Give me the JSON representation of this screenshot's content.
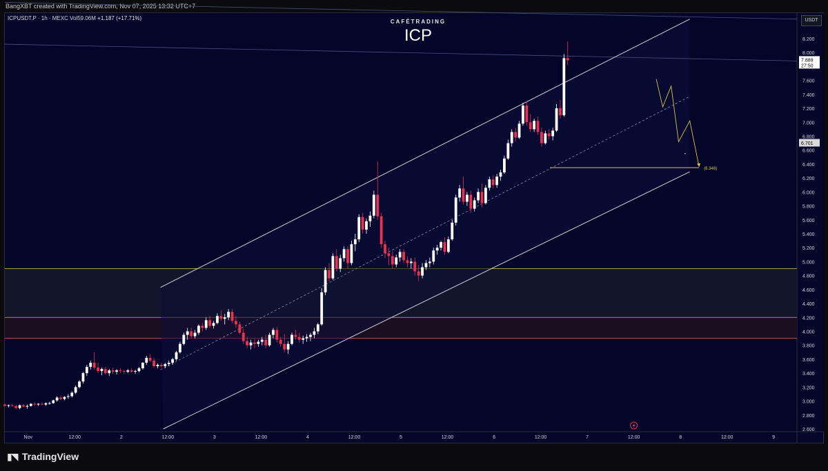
{
  "header": {
    "credit": "BangXBT created with TradingView.com, Nov 07, 2025 13:32 UTC+7"
  },
  "legend": {
    "symbol": "ICPUSDT.P · 1h · MEXC",
    "volume": "Vol59.06M",
    "change": "+1.187 (+17.71%)"
  },
  "brand": "CAFÉTRADING",
  "title": "ICP",
  "currency_button": "USDT",
  "footer_logo": "TradingView",
  "colors": {
    "background": "#050529",
    "bull_candle": "#ffffff",
    "bear_candle": "#e8324f",
    "channel": "#d0d0d8",
    "support_line": "#d4c84a",
    "zone_border": "#d4c84a",
    "zone_red_border": "#e0606a"
  },
  "chart_data": {
    "type": "candlestick",
    "title": "ICP",
    "interval": "1h",
    "y_axis": {
      "ticks": [
        "8.200",
        "8.000",
        "7.800",
        "7.600",
        "7.400",
        "7.200",
        "7.000",
        "6.800",
        "6.600",
        "6.400",
        "6.200",
        "6.000",
        "5.800",
        "5.600",
        "5.400",
        "5.200",
        "5.000",
        "4.800",
        "4.600",
        "4.400",
        "4.200",
        "4.000",
        "3.800",
        "3.600",
        "3.400",
        "3.200",
        "3.000",
        "2.800",
        "2.600"
      ],
      "range": [
        2.6,
        8.2
      ],
      "position": "right"
    },
    "x_axis": {
      "ticks": [
        {
          "label": "Nov",
          "day": 1.0
        },
        {
          "label": "12:00",
          "day": 1.5
        },
        {
          "label": "2",
          "day": 2.0
        },
        {
          "label": "12:00",
          "day": 2.5
        },
        {
          "label": "3",
          "day": 3.0
        },
        {
          "label": "12:00",
          "day": 3.5
        },
        {
          "label": "4",
          "day": 4.0
        },
        {
          "label": "12:00",
          "day": 4.5
        },
        {
          "label": "5",
          "day": 5.0
        },
        {
          "label": "12:00",
          "day": 5.5
        },
        {
          "label": "6",
          "day": 6.0
        },
        {
          "label": "12:00",
          "day": 6.5
        },
        {
          "label": "7",
          "day": 7.0
        },
        {
          "label": "12:00",
          "day": 7.5
        },
        {
          "label": "8",
          "day": 8.0
        },
        {
          "label": "12:00",
          "day": 8.5
        },
        {
          "label": "9",
          "day": 9.0
        }
      ],
      "range": [
        0.75,
        9.25
      ]
    },
    "price_labels": [
      {
        "text": "7.889",
        "sub": "27:50",
        "value": 7.889
      },
      {
        "text": "6.701",
        "value": 6.701
      }
    ],
    "support": {
      "label": "(6.348)",
      "value": 6.348,
      "from_day": 6.6,
      "to_day": 8.2
    },
    "zones": [
      {
        "name": "upper-zone",
        "from": 4.2,
        "to": 4.9
      },
      {
        "name": "lower-zone",
        "from": 3.9,
        "to": 4.2
      }
    ],
    "channel": {
      "upper": [
        [
          2.42,
          4.63
        ],
        [
          8.1,
          8.48
        ]
      ],
      "middle": [
        [
          2.42,
          3.45
        ],
        [
          8.1,
          7.37
        ]
      ],
      "lower": [
        [
          2.45,
          2.6
        ],
        [
          8.1,
          6.29
        ]
      ]
    },
    "horizontal_lines": [
      {
        "name": "resistance-line-1",
        "from": [
          0.75,
          8.12
        ],
        "to": [
          9.25,
          7.88
        ]
      },
      {
        "name": "resistance-line-2",
        "from": [
          0.75,
          8.72
        ],
        "to": [
          9.25,
          8.48
        ]
      }
    ],
    "projection": [
      [
        7.74,
        7.62
      ],
      [
        7.81,
        7.22
      ],
      [
        7.9,
        7.52
      ],
      [
        7.98,
        6.72
      ],
      [
        8.1,
        7.02
      ],
      [
        8.2,
        6.36
      ]
    ],
    "candles": [
      [
        0.75,
        2.95,
        2.96,
        2.92,
        2.93
      ],
      [
        0.79,
        2.93,
        2.95,
        2.91,
        2.94
      ],
      [
        0.83,
        2.94,
        2.96,
        2.92,
        2.93
      ],
      [
        0.87,
        2.93,
        2.94,
        2.88,
        2.9
      ],
      [
        0.91,
        2.9,
        2.95,
        2.88,
        2.94
      ],
      [
        0.95,
        2.94,
        2.96,
        2.91,
        2.92
      ],
      [
        0.99,
        2.92,
        2.95,
        2.89,
        2.93
      ],
      [
        1.03,
        2.93,
        2.97,
        2.92,
        2.96
      ],
      [
        1.07,
        2.96,
        2.98,
        2.93,
        2.95
      ],
      [
        1.11,
        2.95,
        2.97,
        2.93,
        2.96
      ],
      [
        1.15,
        2.96,
        2.98,
        2.94,
        2.95
      ],
      [
        1.19,
        2.95,
        2.98,
        2.93,
        2.97
      ],
      [
        1.23,
        2.97,
        2.99,
        2.95,
        2.97
      ],
      [
        1.27,
        2.97,
        3.02,
        2.96,
        3.01
      ],
      [
        1.31,
        3.01,
        3.07,
        2.99,
        3.05
      ],
      [
        1.35,
        3.05,
        3.08,
        3.01,
        3.03
      ],
      [
        1.39,
        3.03,
        3.07,
        3.01,
        3.06
      ],
      [
        1.43,
        3.06,
        3.1,
        3.03,
        3.07
      ],
      [
        1.47,
        3.07,
        3.14,
        3.05,
        3.12
      ],
      [
        1.51,
        3.12,
        3.22,
        3.1,
        3.2
      ],
      [
        1.55,
        3.2,
        3.3,
        3.18,
        3.28
      ],
      [
        1.59,
        3.28,
        3.42,
        3.25,
        3.4
      ],
      [
        1.63,
        3.4,
        3.52,
        3.36,
        3.49
      ],
      [
        1.67,
        3.49,
        3.58,
        3.45,
        3.55
      ],
      [
        1.71,
        3.55,
        3.7,
        3.45,
        3.48
      ],
      [
        1.75,
        3.48,
        3.55,
        3.4,
        3.43
      ],
      [
        1.79,
        3.43,
        3.48,
        3.37,
        3.46
      ],
      [
        1.83,
        3.46,
        3.49,
        3.38,
        3.4
      ],
      [
        1.87,
        3.4,
        3.46,
        3.36,
        3.44
      ],
      [
        1.91,
        3.44,
        3.48,
        3.39,
        3.42
      ],
      [
        1.95,
        3.42,
        3.46,
        3.38,
        3.44
      ],
      [
        1.99,
        3.44,
        3.47,
        3.4,
        3.43
      ],
      [
        2.03,
        3.43,
        3.45,
        3.39,
        3.42
      ],
      [
        2.07,
        3.42,
        3.46,
        3.4,
        3.44
      ],
      [
        2.11,
        3.44,
        3.47,
        3.41,
        3.42
      ],
      [
        2.15,
        3.42,
        3.45,
        3.39,
        3.43
      ],
      [
        2.19,
        3.43,
        3.49,
        3.41,
        3.47
      ],
      [
        2.23,
        3.47,
        3.56,
        3.45,
        3.55
      ],
      [
        2.27,
        3.55,
        3.65,
        3.52,
        3.62
      ],
      [
        2.31,
        3.62,
        3.68,
        3.56,
        3.58
      ],
      [
        2.35,
        3.58,
        3.62,
        3.48,
        3.5
      ],
      [
        2.39,
        3.5,
        3.54,
        3.47,
        3.52
      ],
      [
        2.43,
        3.52,
        3.55,
        3.48,
        3.5
      ],
      [
        2.47,
        3.5,
        3.55,
        3.47,
        3.53
      ],
      [
        2.51,
        3.53,
        3.58,
        3.5,
        3.55
      ],
      [
        2.55,
        3.55,
        3.62,
        3.52,
        3.6
      ],
      [
        2.59,
        3.6,
        3.72,
        3.58,
        3.7
      ],
      [
        2.63,
        3.7,
        3.85,
        3.68,
        3.82
      ],
      [
        2.67,
        3.82,
        3.98,
        3.8,
        3.95
      ],
      [
        2.71,
        3.95,
        4.05,
        3.88,
        4.0
      ],
      [
        2.75,
        4.0,
        4.05,
        3.9,
        3.93
      ],
      [
        2.79,
        3.93,
        4.02,
        3.9,
        3.98
      ],
      [
        2.83,
        3.98,
        4.1,
        3.95,
        4.08
      ],
      [
        2.87,
        4.08,
        4.12,
        4.0,
        4.05
      ],
      [
        2.91,
        4.05,
        4.2,
        4.02,
        4.16
      ],
      [
        2.95,
        4.16,
        4.22,
        4.05,
        4.08
      ],
      [
        2.99,
        4.08,
        4.15,
        4.04,
        4.12
      ],
      [
        3.03,
        4.12,
        4.26,
        4.1,
        4.22
      ],
      [
        3.07,
        4.22,
        4.3,
        4.15,
        4.18
      ],
      [
        3.11,
        4.18,
        4.25,
        4.1,
        4.2
      ],
      [
        3.15,
        4.2,
        4.32,
        4.16,
        4.28
      ],
      [
        3.19,
        4.28,
        4.32,
        4.12,
        4.15
      ],
      [
        3.23,
        4.15,
        4.22,
        4.05,
        4.1
      ],
      [
        3.27,
        4.1,
        4.14,
        3.96,
        3.98
      ],
      [
        3.31,
        3.98,
        4.04,
        3.82,
        3.86
      ],
      [
        3.35,
        3.86,
        3.92,
        3.76,
        3.8
      ],
      [
        3.39,
        3.8,
        3.88,
        3.74,
        3.84
      ],
      [
        3.43,
        3.84,
        3.9,
        3.76,
        3.82
      ],
      [
        3.47,
        3.82,
        3.88,
        3.78,
        3.85
      ],
      [
        3.51,
        3.85,
        3.92,
        3.8,
        3.88
      ],
      [
        3.55,
        3.88,
        3.95,
        3.76,
        3.8
      ],
      [
        3.59,
        3.8,
        3.98,
        3.78,
        3.95
      ],
      [
        3.63,
        3.95,
        4.05,
        3.9,
        4.02
      ],
      [
        3.67,
        4.02,
        4.06,
        3.84,
        3.88
      ],
      [
        3.71,
        3.88,
        3.92,
        3.78,
        3.82
      ],
      [
        3.75,
        3.82,
        3.96,
        3.7,
        3.74
      ],
      [
        3.79,
        3.74,
        3.86,
        3.68,
        3.82
      ],
      [
        3.83,
        3.82,
        3.98,
        3.8,
        3.95
      ],
      [
        3.87,
        3.95,
        4.02,
        3.88,
        3.92
      ],
      [
        3.91,
        3.92,
        3.98,
        3.84,
        3.88
      ],
      [
        3.95,
        3.88,
        3.94,
        3.82,
        3.9
      ],
      [
        3.99,
        3.9,
        3.96,
        3.85,
        3.92
      ],
      [
        4.03,
        3.92,
        3.98,
        3.86,
        3.95
      ],
      [
        4.07,
        3.95,
        4.05,
        3.9,
        4.0
      ],
      [
        4.11,
        4.0,
        4.12,
        3.96,
        4.1
      ],
      [
        4.15,
        4.1,
        4.62,
        4.08,
        4.56
      ],
      [
        4.19,
        4.56,
        4.92,
        4.52,
        4.88
      ],
      [
        4.23,
        4.88,
        4.98,
        4.72,
        4.76
      ],
      [
        4.27,
        4.76,
        5.12,
        4.74,
        5.08
      ],
      [
        4.31,
        5.08,
        5.18,
        4.86,
        4.9
      ],
      [
        4.35,
        4.9,
        5.1,
        4.85,
        5.05
      ],
      [
        4.39,
        5.05,
        5.22,
        5.0,
        5.18
      ],
      [
        4.43,
        5.18,
        5.22,
        4.9,
        4.98
      ],
      [
        4.47,
        4.98,
        5.3,
        4.95,
        5.25
      ],
      [
        4.51,
        5.25,
        5.4,
        5.15,
        5.32
      ],
      [
        4.55,
        5.32,
        5.68,
        5.28,
        5.64
      ],
      [
        4.59,
        5.64,
        5.7,
        5.4,
        5.46
      ],
      [
        4.63,
        5.46,
        5.62,
        5.4,
        5.58
      ],
      [
        4.67,
        5.58,
        5.72,
        5.5,
        5.66
      ],
      [
        4.71,
        5.66,
        6.02,
        5.62,
        5.96
      ],
      [
        4.75,
        5.96,
        6.44,
        5.6,
        5.65
      ],
      [
        4.79,
        5.65,
        5.7,
        5.2,
        5.25
      ],
      [
        4.83,
        5.25,
        5.3,
        5.05,
        5.12
      ],
      [
        4.87,
        5.12,
        5.2,
        4.95,
        5.08
      ],
      [
        4.91,
        5.08,
        5.15,
        4.9,
        4.96
      ],
      [
        4.95,
        4.96,
        5.1,
        4.92,
        5.06
      ],
      [
        4.99,
        5.06,
        5.18,
        5.0,
        5.14
      ],
      [
        5.03,
        5.14,
        5.18,
        4.98,
        5.02
      ],
      [
        5.07,
        5.02,
        5.08,
        4.92,
        4.98
      ],
      [
        5.11,
        4.98,
        5.05,
        4.9,
        5.0
      ],
      [
        5.15,
        5.0,
        5.06,
        4.8,
        4.86
      ],
      [
        5.19,
        4.86,
        4.95,
        4.72,
        4.8
      ],
      [
        5.23,
        4.8,
        4.98,
        4.76,
        4.92
      ],
      [
        5.27,
        4.92,
        5.02,
        4.88,
        4.98
      ],
      [
        5.31,
        4.98,
        5.06,
        4.92,
        5.0
      ],
      [
        5.35,
        5.0,
        5.2,
        4.96,
        5.16
      ],
      [
        5.39,
        5.16,
        5.24,
        5.1,
        5.2
      ],
      [
        5.43,
        5.2,
        5.3,
        5.16,
        5.28
      ],
      [
        5.47,
        5.28,
        5.35,
        5.1,
        5.14
      ],
      [
        5.51,
        5.14,
        5.36,
        5.12,
        5.32
      ],
      [
        5.55,
        5.32,
        5.6,
        5.3,
        5.56
      ],
      [
        5.59,
        5.56,
        5.96,
        5.52,
        5.92
      ],
      [
        5.63,
        5.92,
        6.1,
        5.86,
        6.05
      ],
      [
        5.67,
        6.05,
        6.22,
        5.82,
        5.86
      ],
      [
        5.71,
        5.86,
        6.0,
        5.8,
        5.96
      ],
      [
        5.75,
        5.96,
        6.02,
        5.7,
        5.76
      ],
      [
        5.79,
        5.76,
        5.92,
        5.72,
        5.88
      ],
      [
        5.83,
        5.88,
        6.05,
        5.84,
        6.0
      ],
      [
        5.87,
        6.0,
        6.12,
        5.78,
        5.84
      ],
      [
        5.91,
        5.84,
        6.1,
        5.82,
        6.06
      ],
      [
        5.95,
        6.06,
        6.22,
        6.02,
        6.18
      ],
      [
        5.99,
        6.18,
        6.24,
        6.05,
        6.1
      ],
      [
        6.03,
        6.1,
        6.26,
        6.06,
        6.22
      ],
      [
        6.07,
        6.22,
        6.32,
        6.16,
        6.28
      ],
      [
        6.11,
        6.28,
        6.52,
        6.26,
        6.48
      ],
      [
        6.15,
        6.48,
        6.75,
        6.46,
        6.7
      ],
      [
        6.19,
        6.7,
        6.9,
        6.65,
        6.86
      ],
      [
        6.23,
        6.86,
        6.92,
        6.72,
        6.78
      ],
      [
        6.27,
        6.78,
        7.02,
        6.76,
        6.98
      ],
      [
        6.31,
        6.98,
        7.28,
        6.95,
        7.24
      ],
      [
        6.35,
        7.24,
        7.3,
        6.95,
        7.0
      ],
      [
        6.39,
        7.0,
        7.12,
        6.86,
        6.9
      ],
      [
        6.43,
        6.9,
        7.05,
        6.86,
        7.02
      ],
      [
        6.47,
        7.02,
        7.08,
        6.82,
        6.86
      ],
      [
        6.51,
        6.86,
        6.92,
        6.65,
        6.7
      ],
      [
        6.55,
        6.7,
        6.88,
        6.68,
        6.84
      ],
      [
        6.59,
        6.84,
        6.9,
        6.75,
        6.8
      ],
      [
        6.63,
        6.8,
        6.92,
        6.74,
        6.88
      ],
      [
        6.67,
        6.88,
        7.26,
        6.86,
        7.2
      ],
      [
        6.71,
        7.2,
        7.32,
        7.05,
        7.1
      ],
      [
        6.75,
        7.1,
        7.98,
        7.08,
        7.92
      ],
      [
        6.79,
        7.92,
        8.16,
        7.82,
        7.889
      ]
    ]
  }
}
